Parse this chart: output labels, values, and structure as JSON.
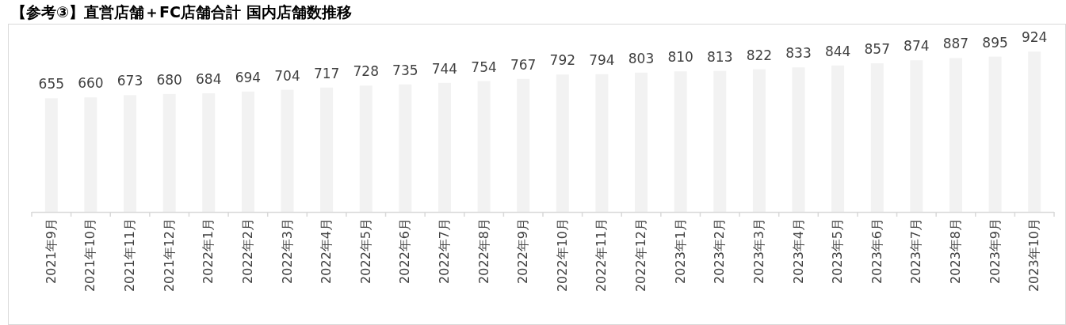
{
  "chart_data": {
    "type": "bar",
    "title": "【参考③】直営店舗＋FC店舗合計 国内店舗数推移",
    "categories": [
      "2021年9月",
      "2021年10月",
      "2021年11月",
      "2021年12月",
      "2022年1月",
      "2022年2月",
      "2022年3月",
      "2022年4月",
      "2022年5月",
      "2022年6月",
      "2022年7月",
      "2022年8月",
      "2022年9月",
      "2022年10月",
      "2022年11月",
      "2022年12月",
      "2023年1月",
      "2023年2月",
      "2023年3月",
      "2023年4月",
      "2023年5月",
      "2023年6月",
      "2023年7月",
      "2023年8月",
      "2023年9月",
      "2023年10月"
    ],
    "values": [
      655,
      660,
      673,
      680,
      684,
      694,
      704,
      717,
      728,
      735,
      744,
      754,
      767,
      792,
      794,
      803,
      810,
      813,
      822,
      833,
      844,
      857,
      874,
      887,
      895,
      924
    ],
    "color": "#f2f2f2",
    "tick_labels": "x",
    "data_labels": true
  }
}
